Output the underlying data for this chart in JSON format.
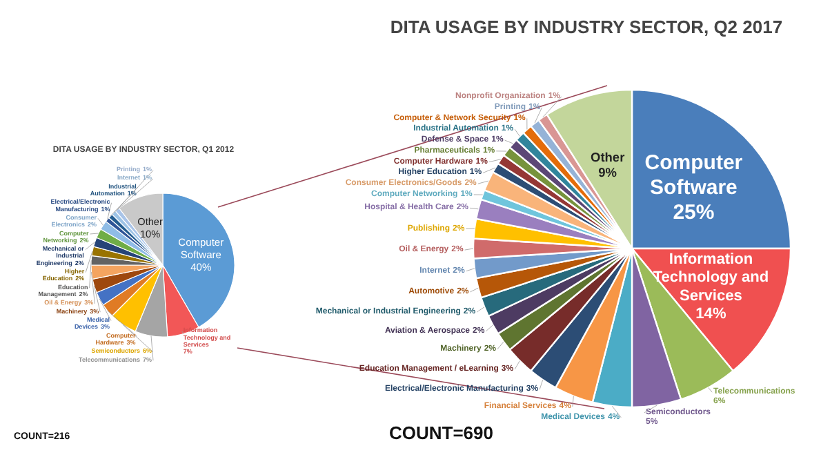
{
  "chart_data": [
    {
      "type": "pie",
      "title": "DITA USAGE BY INDUSTRY SECTOR, Q1 2012",
      "annotations": [
        "COUNT=216"
      ],
      "categories": [
        "Computer Software",
        "Information Technology and Services",
        "Telecommunications",
        "Semiconductors",
        "Computer Hardware",
        "Medical Devices",
        "Machinery",
        "Oil & Energy",
        "Education Management",
        "Higher Education",
        "Mechanical or Industrial Engineering",
        "Computer Networking",
        "Consumer Electronics",
        "Electrical/Electronic Manufacturing",
        "Industrial Automation",
        "Internet",
        "Printing",
        "Other"
      ],
      "values": [
        40,
        7,
        7,
        6,
        3,
        3,
        3,
        3,
        2,
        2,
        2,
        2,
        2,
        1,
        1,
        1,
        1,
        10
      ],
      "value_labels": [
        "40%",
        "7%",
        "7%",
        "6%",
        "3%",
        "3%",
        "3%",
        "3%",
        "2%",
        "2%",
        "2%",
        "2%",
        "2%",
        "1%",
        "1%",
        "1%",
        "1%",
        "10%"
      ],
      "colors": [
        "#5b9bd5",
        "#f25757",
        "#a5a5a5",
        "#ffc000",
        "#e07b24",
        "#4472c4",
        "#9e480e",
        "#f4a460",
        "#636363",
        "#997300",
        "#264478",
        "#70ad47",
        "#8fbce6",
        "#2f5597",
        "#255e91",
        "#9dc3e6",
        "#a9c4e8",
        "#c9c9c9"
      ]
    },
    {
      "type": "pie",
      "title": "DITA USAGE BY INDUSTRY SECTOR, Q2 2017",
      "annotations": [
        "COUNT=690"
      ],
      "categories": [
        "Computer Software",
        "Information Technology and Services",
        "Telecommunications",
        "Semiconductors",
        "Medical Devices",
        "Financial Services",
        "Electrical/Electronic Manufacturing",
        "Education Management / eLearning",
        "Machinery",
        "Aviation & Aerospace",
        "Mechanical or Industrial Engineering",
        "Automotive",
        "Internet",
        "Oil & Energy",
        "Publishing",
        "Hospital & Health Care",
        "Computer Networking",
        "Consumer Electronics/Goods",
        "Higher Education",
        "Computer Hardware",
        "Pharmaceuticals",
        "Defense & Space",
        "Industrial Automation",
        "Computer & Network Security",
        "Printing",
        "Nonprofit Organization",
        "Other"
      ],
      "values": [
        25,
        14,
        6,
        5,
        4,
        4,
        3,
        3,
        2,
        2,
        2,
        2,
        2,
        2,
        2,
        2,
        1,
        2,
        1,
        1,
        1,
        1,
        1,
        1,
        1,
        1,
        9
      ],
      "value_labels": [
        "25%",
        "14%",
        "6%",
        "5%",
        "4%",
        "4%",
        "3%",
        "3%",
        "2%",
        "2%",
        "2%",
        "2%",
        "2%",
        "2%",
        "2%",
        "2%",
        "1%",
        "2%",
        "1%",
        "1%",
        "1%",
        "1%",
        "1%",
        "1%",
        "1%",
        "1%",
        "9%"
      ],
      "colors": [
        "#4a7ebb",
        "#f05050",
        "#9bbb59",
        "#8064a2",
        "#4bacc6",
        "#f79646",
        "#2c4d75",
        "#772c2a",
        "#5f7530",
        "#4d3b62",
        "#276a7c",
        "#b65708",
        "#729aca",
        "#d06b6b",
        "#ffc000",
        "#9a7fbf",
        "#6fc5dc",
        "#f9b47a",
        "#2c4d75",
        "#953735",
        "#77933c",
        "#5c4776",
        "#31859c",
        "#e46c0a",
        "#95b3d7",
        "#d99694",
        "#c3d69b"
      ]
    }
  ]
}
